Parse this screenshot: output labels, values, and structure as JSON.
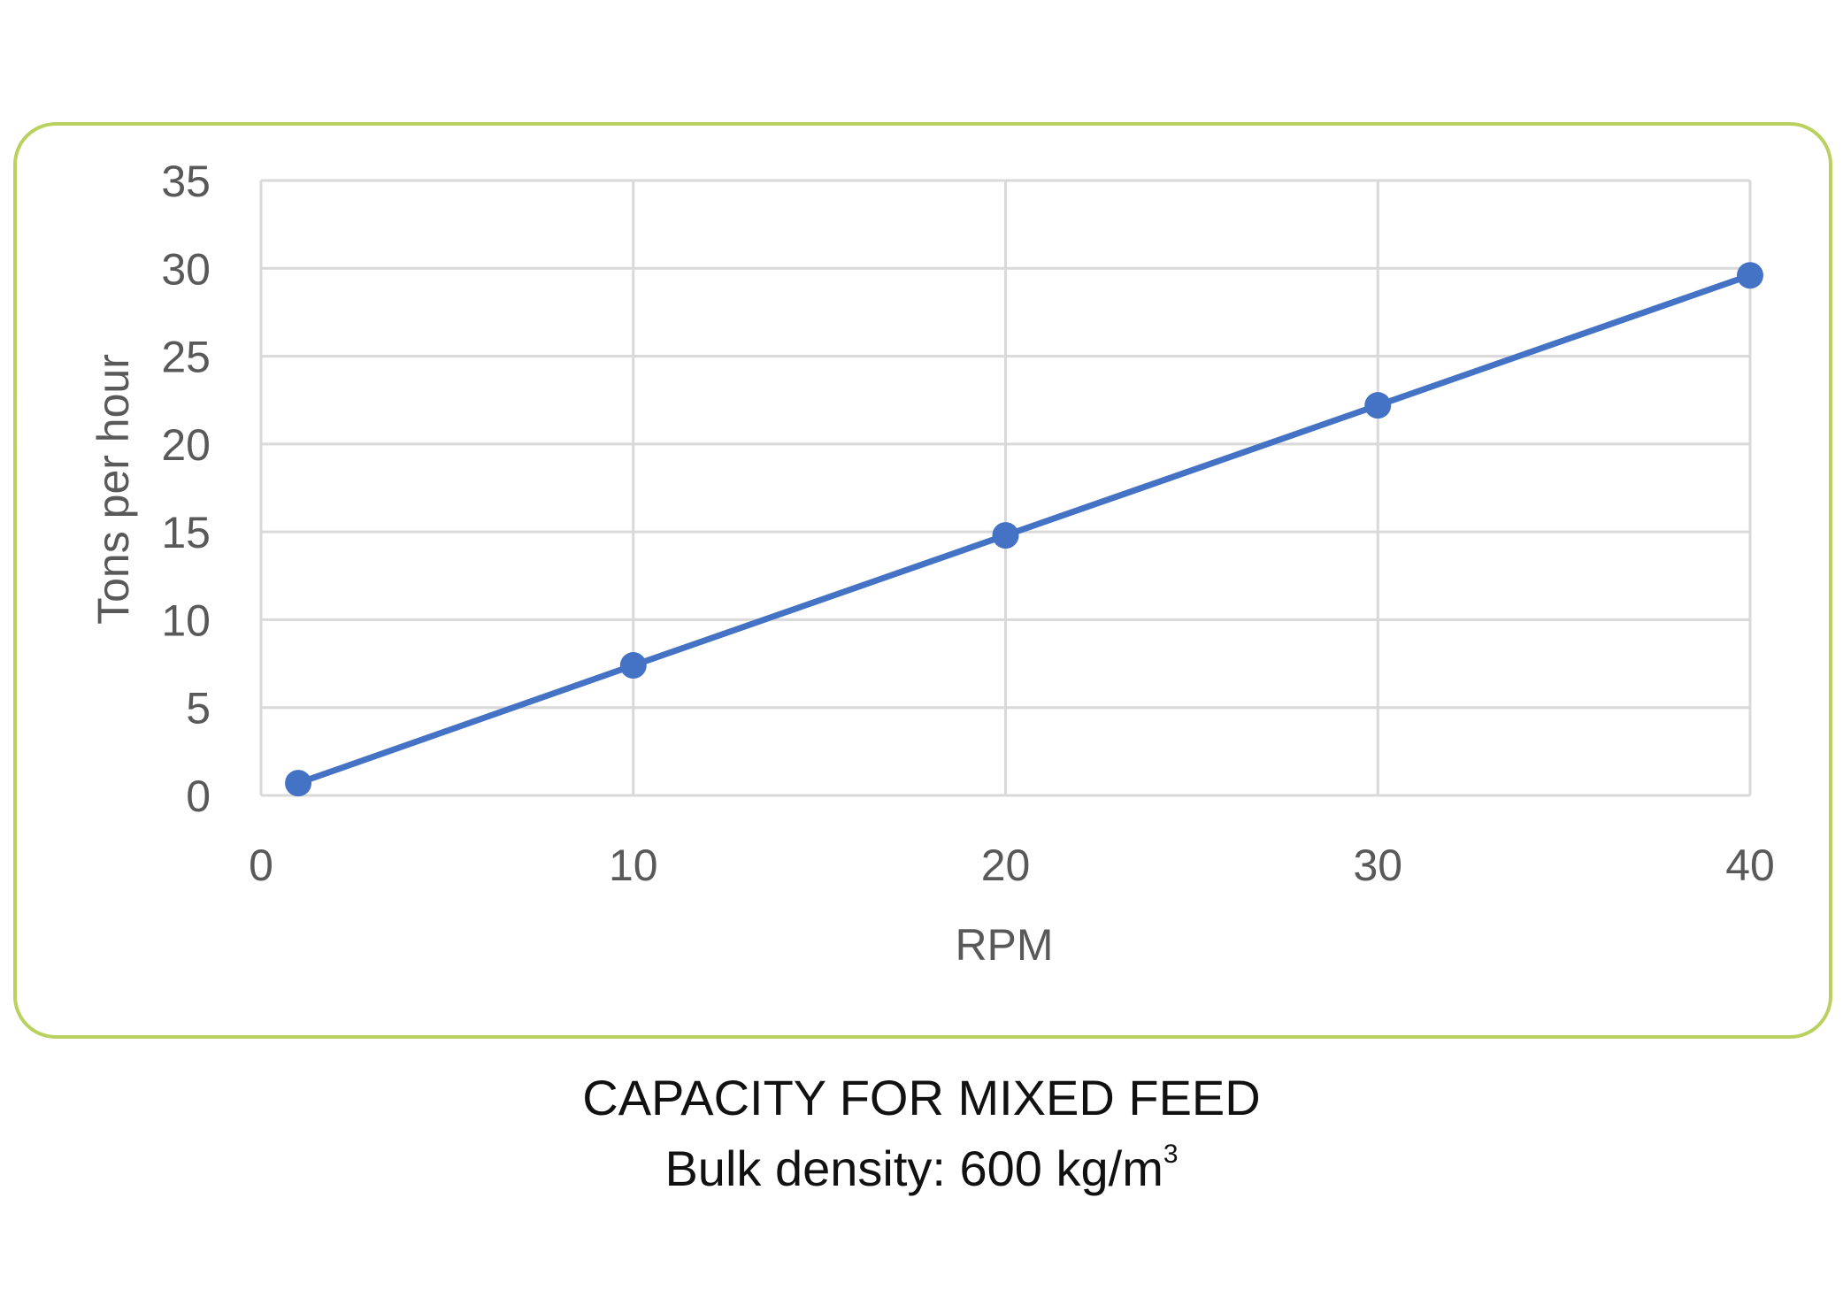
{
  "chart_data": {
    "type": "line",
    "title": "CAPACITY FOR MIXED FEED",
    "subtitle_prefix": "Bulk density: 600 kg/m",
    "subtitle_superscript": "3",
    "xlabel": "RPM",
    "ylabel": "Tons per hour",
    "xlim": [
      0,
      40
    ],
    "ylim": [
      0,
      35
    ],
    "x_ticks": [
      "0",
      "10",
      "20",
      "30",
      "40"
    ],
    "y_ticks": [
      "0",
      "5",
      "10",
      "15",
      "20",
      "25",
      "30",
      "35"
    ],
    "grid": true,
    "legend": "none",
    "series": [
      {
        "x": [
          1,
          10,
          20,
          30,
          40
        ],
        "y": [
          0.7,
          7.4,
          14.8,
          22.2,
          29.6
        ]
      }
    ]
  },
  "colors": {
    "series": "#4472C4",
    "frame": "#B8D15F",
    "grid": "#D9D9D9",
    "axis_text": "#595959",
    "caption_text": "#111111"
  }
}
